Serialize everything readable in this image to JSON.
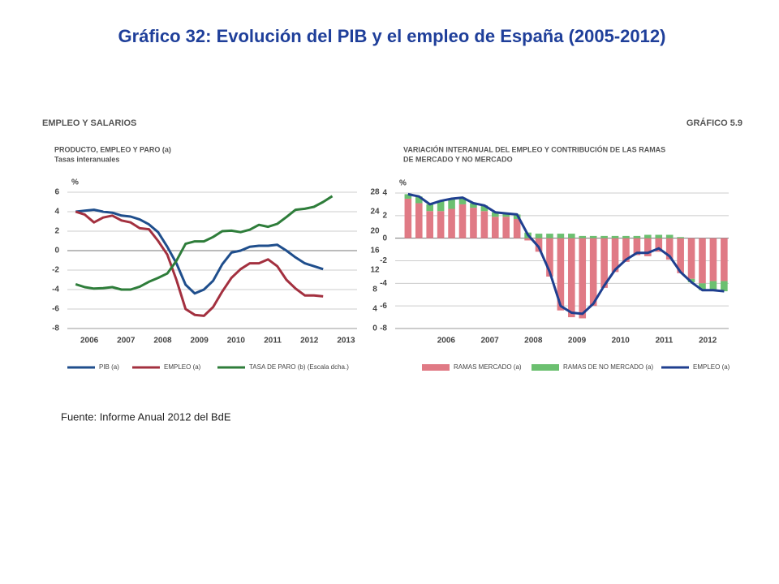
{
  "title": "Gráfico 32: Evolución del PIB y el empleo de España (2005-2012)",
  "header": {
    "section": "EMPLEO Y SALARIOS",
    "figure": "GRÁFICO 5.9"
  },
  "source": "Fuente: Informe Anual 2012 del BdE",
  "chart_data": [
    {
      "type": "line",
      "title": [
        "PRODUCTO, EMPLEO Y PARO (a)"
      ],
      "subtitle": "Tasas interanuales",
      "y_label": "%",
      "x": [
        2006.125,
        2006.375,
        2006.625,
        2006.875,
        2007.125,
        2007.375,
        2007.625,
        2007.875,
        2008.125,
        2008.375,
        2008.625,
        2008.875,
        2009.125,
        2009.375,
        2009.625,
        2009.875,
        2010.125,
        2010.375,
        2010.625,
        2010.875,
        2011.125,
        2011.375,
        2011.625,
        2011.875,
        2012.125,
        2012.375,
        2012.625,
        2012.875,
        2013.125
      ],
      "xlim": [
        2005.9,
        2013.8
      ],
      "xticks": [
        {
          "value": 2006.5,
          "label": "2006"
        },
        {
          "value": 2007.5,
          "label": "2007"
        },
        {
          "value": 2008.5,
          "label": "2008"
        },
        {
          "value": 2009.5,
          "label": "2009"
        },
        {
          "value": 2010.5,
          "label": "2010"
        },
        {
          "value": 2011.5,
          "label": "2011"
        },
        {
          "value": 2012.5,
          "label": "2012"
        },
        {
          "value": 2013.5,
          "label": "2013"
        }
      ],
      "ylim": [
        -8,
        6
      ],
      "yticks": [
        -8,
        -6,
        -4,
        -2,
        0,
        2,
        4,
        6
      ],
      "y2lim": [
        0,
        28
      ],
      "y2ticks": [
        0,
        4,
        8,
        12,
        16,
        20,
        24,
        28
      ],
      "grid": true,
      "series": [
        {
          "name": "PIB (a)",
          "color": "#1f4e8c",
          "values": [
            4.0,
            4.1,
            4.2,
            4.0,
            3.9,
            3.6,
            3.5,
            3.2,
            2.7,
            1.9,
            0.4,
            -1.3,
            -3.5,
            -4.4,
            -4.0,
            -3.1,
            -1.4,
            -0.2,
            0.0,
            0.4,
            0.5,
            0.5,
            0.6,
            0.0,
            -0.7,
            -1.3,
            -1.6,
            -1.9,
            null
          ]
        },
        {
          "name": "EMPLEO (a)",
          "color": "#a3303f",
          "values": [
            4.0,
            3.7,
            2.9,
            3.4,
            3.6,
            3.1,
            2.9,
            2.3,
            2.2,
            1.0,
            -0.4,
            -3.0,
            -6.0,
            -6.6,
            -6.7,
            -5.8,
            -4.2,
            -2.8,
            -1.9,
            -1.3,
            -1.3,
            -0.9,
            -1.6,
            -3.0,
            -3.9,
            -4.6,
            -4.6,
            -4.7,
            null
          ]
        },
        {
          "name": "TASA DE PARO (b) (Escala dcha.)",
          "color": "#2e7d3a",
          "axis": "y2",
          "values": [
            9.1,
            8.5,
            8.2,
            8.3,
            8.5,
            8.0,
            8.0,
            8.6,
            9.6,
            10.4,
            11.3,
            13.9,
            17.4,
            17.9,
            17.9,
            18.8,
            20.0,
            20.1,
            19.8,
            20.3,
            21.3,
            20.9,
            21.5,
            22.9,
            24.4,
            24.6,
            25.0,
            26.0,
            27.2
          ]
        }
      ]
    },
    {
      "type": "bar",
      "title": [
        "VARIACIÓN INTERANUAL DEL EMPLEO Y CONTRIBUCIÓN DE LAS RAMAS",
        "DE MERCADO Y NO MERCADO"
      ],
      "y_label": "%",
      "stacked": true,
      "x": [
        2005.625,
        2005.875,
        2006.125,
        2006.375,
        2006.625,
        2006.875,
        2007.125,
        2007.375,
        2007.625,
        2007.875,
        2008.125,
        2008.375,
        2008.625,
        2008.875,
        2009.125,
        2009.375,
        2009.625,
        2009.875,
        2010.125,
        2010.375,
        2010.625,
        2010.875,
        2011.125,
        2011.375,
        2011.625,
        2011.875,
        2012.125,
        2012.375,
        2012.625,
        2012.875
      ],
      "xlim": [
        2005.33,
        2012.98
      ],
      "xticks": [
        {
          "value": 2006.5,
          "label": "2006"
        },
        {
          "value": 2007.5,
          "label": "2007"
        },
        {
          "value": 2008.5,
          "label": "2008"
        },
        {
          "value": 2009.5,
          "label": "2009"
        },
        {
          "value": 2010.5,
          "label": "2010"
        },
        {
          "value": 2011.5,
          "label": "2011"
        },
        {
          "value": 2012.5,
          "label": "2012"
        }
      ],
      "ylim": [
        -8,
        4
      ],
      "yticks": [
        -8,
        -6,
        -4,
        -2,
        0,
        2,
        4
      ],
      "grid": true,
      "series": [
        {
          "name": "RAMAS MERCADO (a)",
          "color": "#e07a85",
          "values": [
            3.5,
            3.1,
            2.4,
            2.4,
            2.6,
            3.0,
            2.7,
            2.4,
            1.9,
            1.9,
            1.7,
            -0.2,
            -1.2,
            -3.4,
            -6.4,
            -7.0,
            -7.1,
            -6.0,
            -4.4,
            -3.0,
            -2.1,
            -1.5,
            -1.6,
            -1.2,
            -1.9,
            -3.1,
            -3.6,
            -4.0,
            -3.8,
            -3.8
          ]
        },
        {
          "name": "RAMAS DE NO MERCADO (a)",
          "color": "#6cc070",
          "values": [
            0.4,
            0.6,
            0.6,
            0.9,
            0.9,
            0.6,
            0.4,
            0.5,
            0.4,
            0.3,
            0.4,
            0.5,
            0.4,
            0.4,
            0.4,
            0.4,
            0.2,
            0.2,
            0.2,
            0.2,
            0.2,
            0.2,
            0.3,
            0.3,
            0.3,
            0.1,
            -0.3,
            -0.6,
            -0.8,
            -0.9
          ]
        },
        {
          "name": "EMPLEO (a)",
          "color": "#1f3f8f",
          "type": "line",
          "values": [
            3.9,
            3.7,
            3.0,
            3.3,
            3.5,
            3.6,
            3.1,
            2.9,
            2.3,
            2.2,
            2.1,
            0.3,
            -0.8,
            -3.0,
            -6.0,
            -6.6,
            -6.7,
            -5.8,
            -4.2,
            -2.8,
            -1.9,
            -1.3,
            -1.3,
            -0.9,
            -1.6,
            -3.0,
            -3.9,
            -4.6,
            -4.6,
            -4.7
          ]
        }
      ]
    }
  ]
}
